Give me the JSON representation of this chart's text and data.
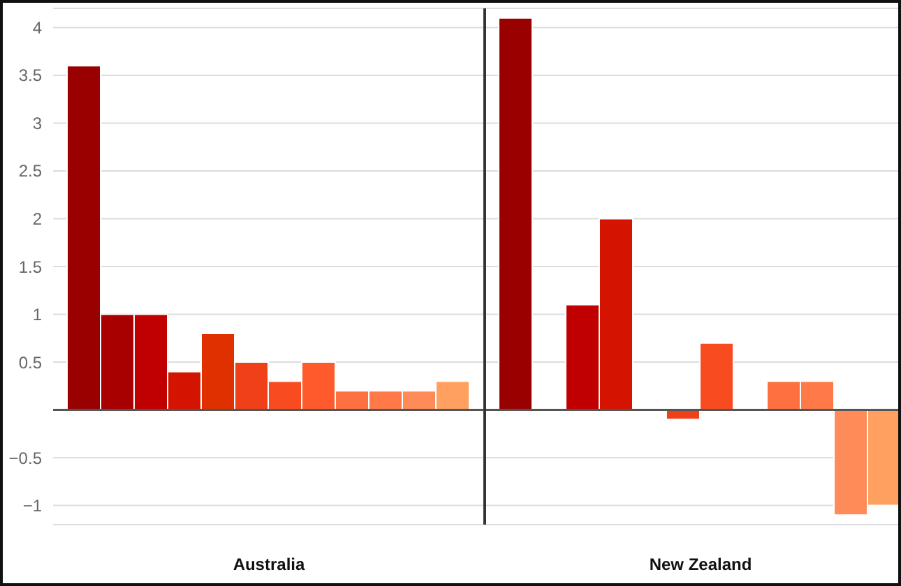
{
  "chart_data": {
    "type": "bar",
    "categories": [
      "Australia",
      "New Zealand"
    ],
    "series": [
      {
        "color": "#990000",
        "values": [
          3.6,
          4.1
        ]
      },
      {
        "color": "#a80000",
        "values": [
          1,
          0
        ]
      },
      {
        "color": "#c00000",
        "values": [
          1,
          1.1
        ]
      },
      {
        "color": "#d41400",
        "values": [
          0.4,
          2
        ]
      },
      {
        "color": "#e03000",
        "values": [
          0.8,
          0
        ]
      },
      {
        "color": "#f04018",
        "values": [
          0.5,
          -0.1
        ]
      },
      {
        "color": "#f84c20",
        "values": [
          0.3,
          0.7
        ]
      },
      {
        "color": "#ff5a2c",
        "values": [
          0.5,
          0
        ]
      },
      {
        "color": "#ff7040",
        "values": [
          0.2,
          0.3
        ]
      },
      {
        "color": "#ff7a48",
        "values": [
          0.2,
          0.3
        ]
      },
      {
        "color": "#ff8c58",
        "values": [
          0.2,
          -1.1
        ]
      },
      {
        "color": "#ffa060",
        "values": [
          0.3,
          -1
        ]
      }
    ],
    "ylim": [
      -1.2,
      4.2
    ],
    "yticks": [
      -1,
      -0.5,
      {
        "value": 0,
        "label": null
      },
      0.5,
      1,
      1.5,
      2,
      2.5,
      3,
      3.5,
      4
    ],
    "grid": "y",
    "ref_lines": [
      {
        "axis": "y",
        "value": 0,
        "color": "#555555"
      },
      {
        "axis": "x",
        "value": "New Zealand",
        "color": "#333333"
      }
    ],
    "legend": false
  }
}
